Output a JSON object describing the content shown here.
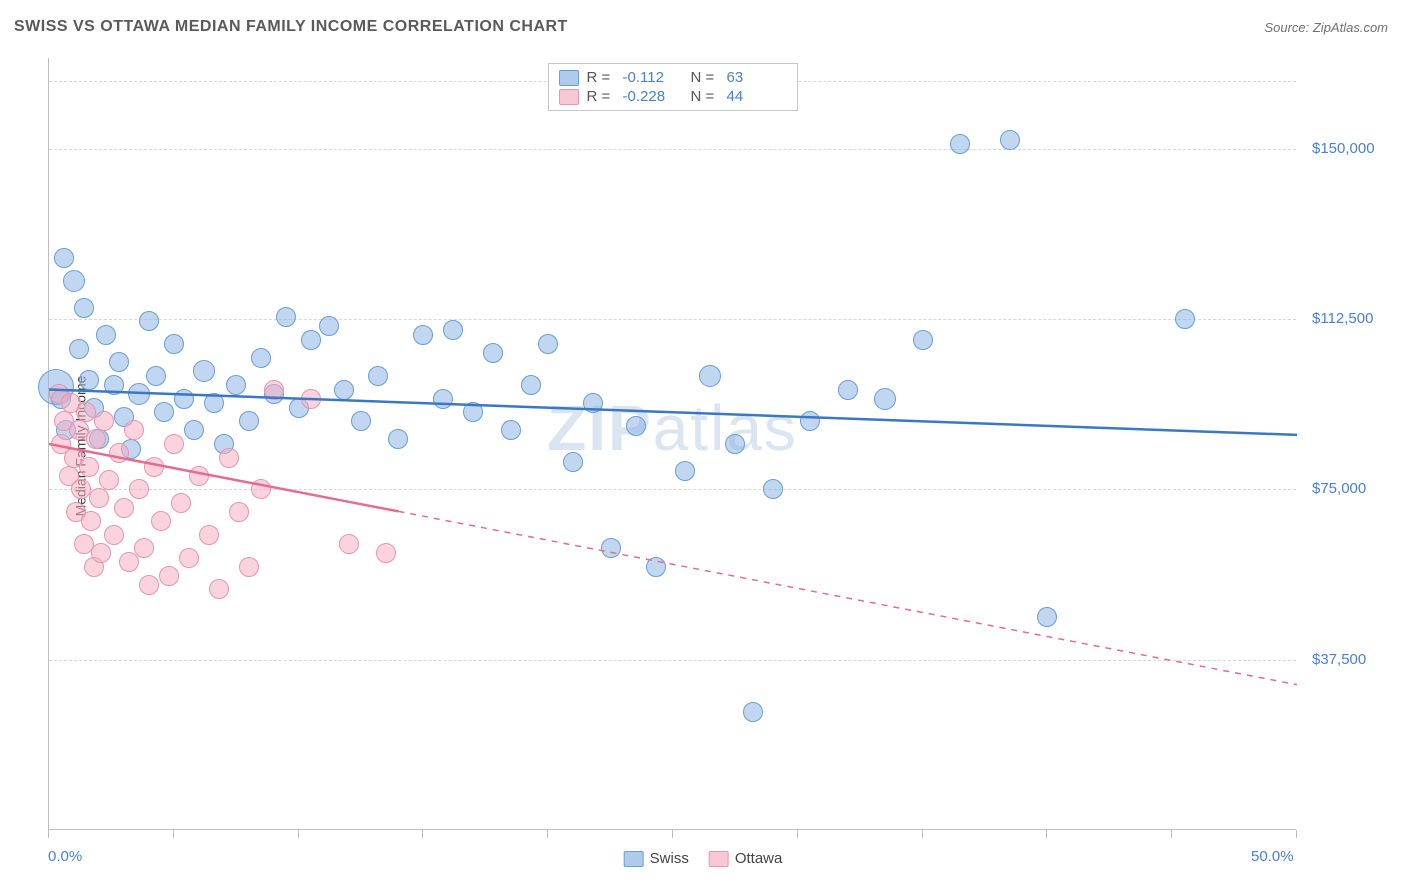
{
  "title": "SWISS VS OTTAWA MEDIAN FAMILY INCOME CORRELATION CHART",
  "source_label": "Source: ZipAtlas.com",
  "ylabel": "Median Family Income",
  "watermark_bold": "ZIP",
  "watermark_rest": "atlas",
  "chart": {
    "type": "scatter",
    "xlim": [
      0,
      50
    ],
    "ylim": [
      0,
      170000
    ],
    "xtick_labels": {
      "0": "0.0%",
      "50": "50.0%"
    },
    "xtick_positions": [
      0,
      5,
      10,
      15,
      20,
      25,
      30,
      35,
      40,
      45,
      50
    ],
    "ytick_labels": {
      "37500": "$37,500",
      "75000": "$75,000",
      "112500": "$112,500",
      "150000": "$150,000"
    },
    "ygrid_positions": [
      37500,
      75000,
      112500,
      150000,
      165000
    ],
    "background": "#ffffff",
    "grid_color": "#d8d8d8",
    "axis_color": "#bdbdbd",
    "label_color": "#4a7fd1",
    "label_fontsize": 15,
    "point_radius": 9,
    "series": [
      {
        "name": "Swiss",
        "fill": "rgba(140,180,230,0.55)",
        "stroke": "#6a9fd4",
        "trend_color": "#3b78c4",
        "trend_width": 2.5,
        "trend": {
          "y_at_x0": 97000,
          "y_at_x50": 87000,
          "solid_until_x": 50
        },
        "R": "-0.112",
        "N": "63",
        "points": [
          [
            0.6,
            126000,
            10
          ],
          [
            0.3,
            97500,
            18
          ],
          [
            0.5,
            95000,
            10
          ],
          [
            0.7,
            88000,
            10
          ],
          [
            1.0,
            121000,
            11
          ],
          [
            1.2,
            106000,
            10
          ],
          [
            1.4,
            115000,
            10
          ],
          [
            1.6,
            99000,
            10
          ],
          [
            1.8,
            93000,
            10
          ],
          [
            2.0,
            86000,
            10
          ],
          [
            2.3,
            109000,
            10
          ],
          [
            2.6,
            98000,
            10
          ],
          [
            2.8,
            103000,
            10
          ],
          [
            3.0,
            91000,
            10
          ],
          [
            3.3,
            84000,
            10
          ],
          [
            3.6,
            96000,
            11
          ],
          [
            4.0,
            112000,
            10
          ],
          [
            4.3,
            100000,
            10
          ],
          [
            4.6,
            92000,
            10
          ],
          [
            5.0,
            107000,
            10
          ],
          [
            5.4,
            95000,
            10
          ],
          [
            5.8,
            88000,
            10
          ],
          [
            6.2,
            101000,
            11
          ],
          [
            6.6,
            94000,
            10
          ],
          [
            7.0,
            85000,
            10
          ],
          [
            7.5,
            98000,
            10
          ],
          [
            8.0,
            90000,
            10
          ],
          [
            8.5,
            104000,
            10
          ],
          [
            9.0,
            96000,
            10
          ],
          [
            9.5,
            113000,
            10
          ],
          [
            10.0,
            93000,
            10
          ],
          [
            10.5,
            108000,
            10
          ],
          [
            11.2,
            111000,
            10
          ],
          [
            11.8,
            97000,
            10
          ],
          [
            12.5,
            90000,
            10
          ],
          [
            13.2,
            100000,
            10
          ],
          [
            14.0,
            86000,
            10
          ],
          [
            15.0,
            109000,
            10
          ],
          [
            15.8,
            95000,
            10
          ],
          [
            16.2,
            110000,
            10
          ],
          [
            17.0,
            92000,
            10
          ],
          [
            17.8,
            105000,
            10
          ],
          [
            18.5,
            88000,
            10
          ],
          [
            19.3,
            98000,
            10
          ],
          [
            20.0,
            107000,
            10
          ],
          [
            21.0,
            81000,
            10
          ],
          [
            21.8,
            94000,
            10
          ],
          [
            22.5,
            62000,
            10
          ],
          [
            23.5,
            89000,
            10
          ],
          [
            24.3,
            58000,
            10
          ],
          [
            25.5,
            79000,
            10
          ],
          [
            26.5,
            100000,
            11
          ],
          [
            27.5,
            85000,
            10
          ],
          [
            28.2,
            26000,
            10
          ],
          [
            29.0,
            75000,
            10
          ],
          [
            30.5,
            90000,
            10
          ],
          [
            32.0,
            97000,
            10
          ],
          [
            33.5,
            95000,
            11
          ],
          [
            35.0,
            108000,
            10
          ],
          [
            36.5,
            151000,
            10
          ],
          [
            38.5,
            152000,
            10
          ],
          [
            40.0,
            47000,
            10
          ],
          [
            45.5,
            112500,
            10
          ]
        ]
      },
      {
        "name": "Ottawa",
        "fill": "rgba(245,175,195,0.55)",
        "stroke": "#e895b0",
        "trend_color": "#e86a8f",
        "trend_width": 2.5,
        "trend": {
          "y_at_x0": 85000,
          "y_at_x50": 32000,
          "solid_until_x": 14
        },
        "R": "-0.228",
        "N": "44",
        "points": [
          [
            0.4,
            96000,
            10
          ],
          [
            0.5,
            85000,
            10
          ],
          [
            0.6,
            90000,
            10
          ],
          [
            0.8,
            78000,
            10
          ],
          [
            0.9,
            94000,
            10
          ],
          [
            1.0,
            82000,
            10
          ],
          [
            1.1,
            70000,
            10
          ],
          [
            1.2,
            88000,
            10
          ],
          [
            1.3,
            75000,
            10
          ],
          [
            1.4,
            63000,
            10
          ],
          [
            1.5,
            92000,
            10
          ],
          [
            1.6,
            80000,
            10
          ],
          [
            1.7,
            68000,
            10
          ],
          [
            1.8,
            58000,
            10
          ],
          [
            1.9,
            86000,
            10
          ],
          [
            2.0,
            73000,
            10
          ],
          [
            2.1,
            61000,
            10
          ],
          [
            2.2,
            90000,
            10
          ],
          [
            2.4,
            77000,
            10
          ],
          [
            2.6,
            65000,
            10
          ],
          [
            2.8,
            83000,
            10
          ],
          [
            3.0,
            71000,
            10
          ],
          [
            3.2,
            59000,
            10
          ],
          [
            3.4,
            88000,
            10
          ],
          [
            3.6,
            75000,
            10
          ],
          [
            3.8,
            62000,
            10
          ],
          [
            4.0,
            54000,
            10
          ],
          [
            4.2,
            80000,
            10
          ],
          [
            4.5,
            68000,
            10
          ],
          [
            4.8,
            56000,
            10
          ],
          [
            5.0,
            85000,
            10
          ],
          [
            5.3,
            72000,
            10
          ],
          [
            5.6,
            60000,
            10
          ],
          [
            6.0,
            78000,
            10
          ],
          [
            6.4,
            65000,
            10
          ],
          [
            6.8,
            53000,
            10
          ],
          [
            7.2,
            82000,
            10
          ],
          [
            7.6,
            70000,
            10
          ],
          [
            8.0,
            58000,
            10
          ],
          [
            8.5,
            75000,
            10
          ],
          [
            9.0,
            97000,
            10
          ],
          [
            10.5,
            95000,
            10
          ],
          [
            12.0,
            63000,
            10
          ],
          [
            13.5,
            61000,
            10
          ]
        ]
      }
    ]
  },
  "legend_bottom": [
    {
      "label": "Swiss",
      "swatch": "blue"
    },
    {
      "label": "Ottawa",
      "swatch": "pink"
    }
  ]
}
